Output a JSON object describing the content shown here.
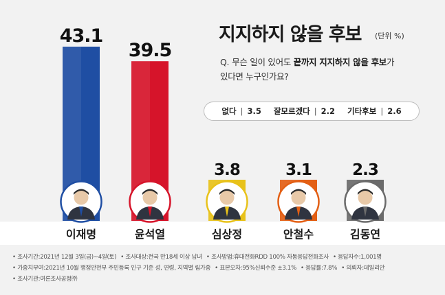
{
  "title": "지지하지 않을 후보",
  "unit": "(단위 %)",
  "question": {
    "prefix": "Q.",
    "part1": "무슨 일이 있어도 ",
    "bold": "끝까지 지지하지 않을 후보",
    "part2": "가",
    "line2": "있다면 누구인가요?"
  },
  "other_options": [
    {
      "label": "없다",
      "value": "3.5"
    },
    {
      "label": "잘모르겠다",
      "value": "2.2"
    },
    {
      "label": "기타후보",
      "value": "2.6"
    }
  ],
  "chart_data": {
    "type": "bar",
    "title": "지지하지 않을 후보",
    "unit": "(단위 %)",
    "categories": [
      "이재명",
      "윤석열",
      "심상정",
      "안철수",
      "김동연"
    ],
    "values": [
      43.1,
      39.5,
      3.8,
      3.1,
      2.3
    ],
    "value_labels": [
      "43.1",
      "39.5",
      "3.8",
      "3.1",
      "2.3"
    ],
    "colors": [
      "#1f4ea3",
      "#d6142a",
      "#e8c21a",
      "#e35f14",
      "#6b6b6b"
    ],
    "ylim": [
      0,
      43.1
    ],
    "grid": false,
    "legend": "none"
  },
  "footer": {
    "line1": [
      "조사기간:2021년 12월 3일(금)~4일(토)",
      "조사대상:전국 만18세 이상 남녀",
      "조사방법:휴대전화RDD 100% 자동응답전화조사",
      "응답자수:1,001명"
    ],
    "line2": [
      "가중치부여:2021년 10월 행정안전부 주민등록 인구 기준 성, 연령, 지역별 림가중",
      "표본오차:95%신뢰수준 ±3.1%",
      "응답률:7.8%",
      "의뢰자:데일리안"
    ],
    "line3": [
      "조사기관:여론조사공정㈜"
    ]
  }
}
